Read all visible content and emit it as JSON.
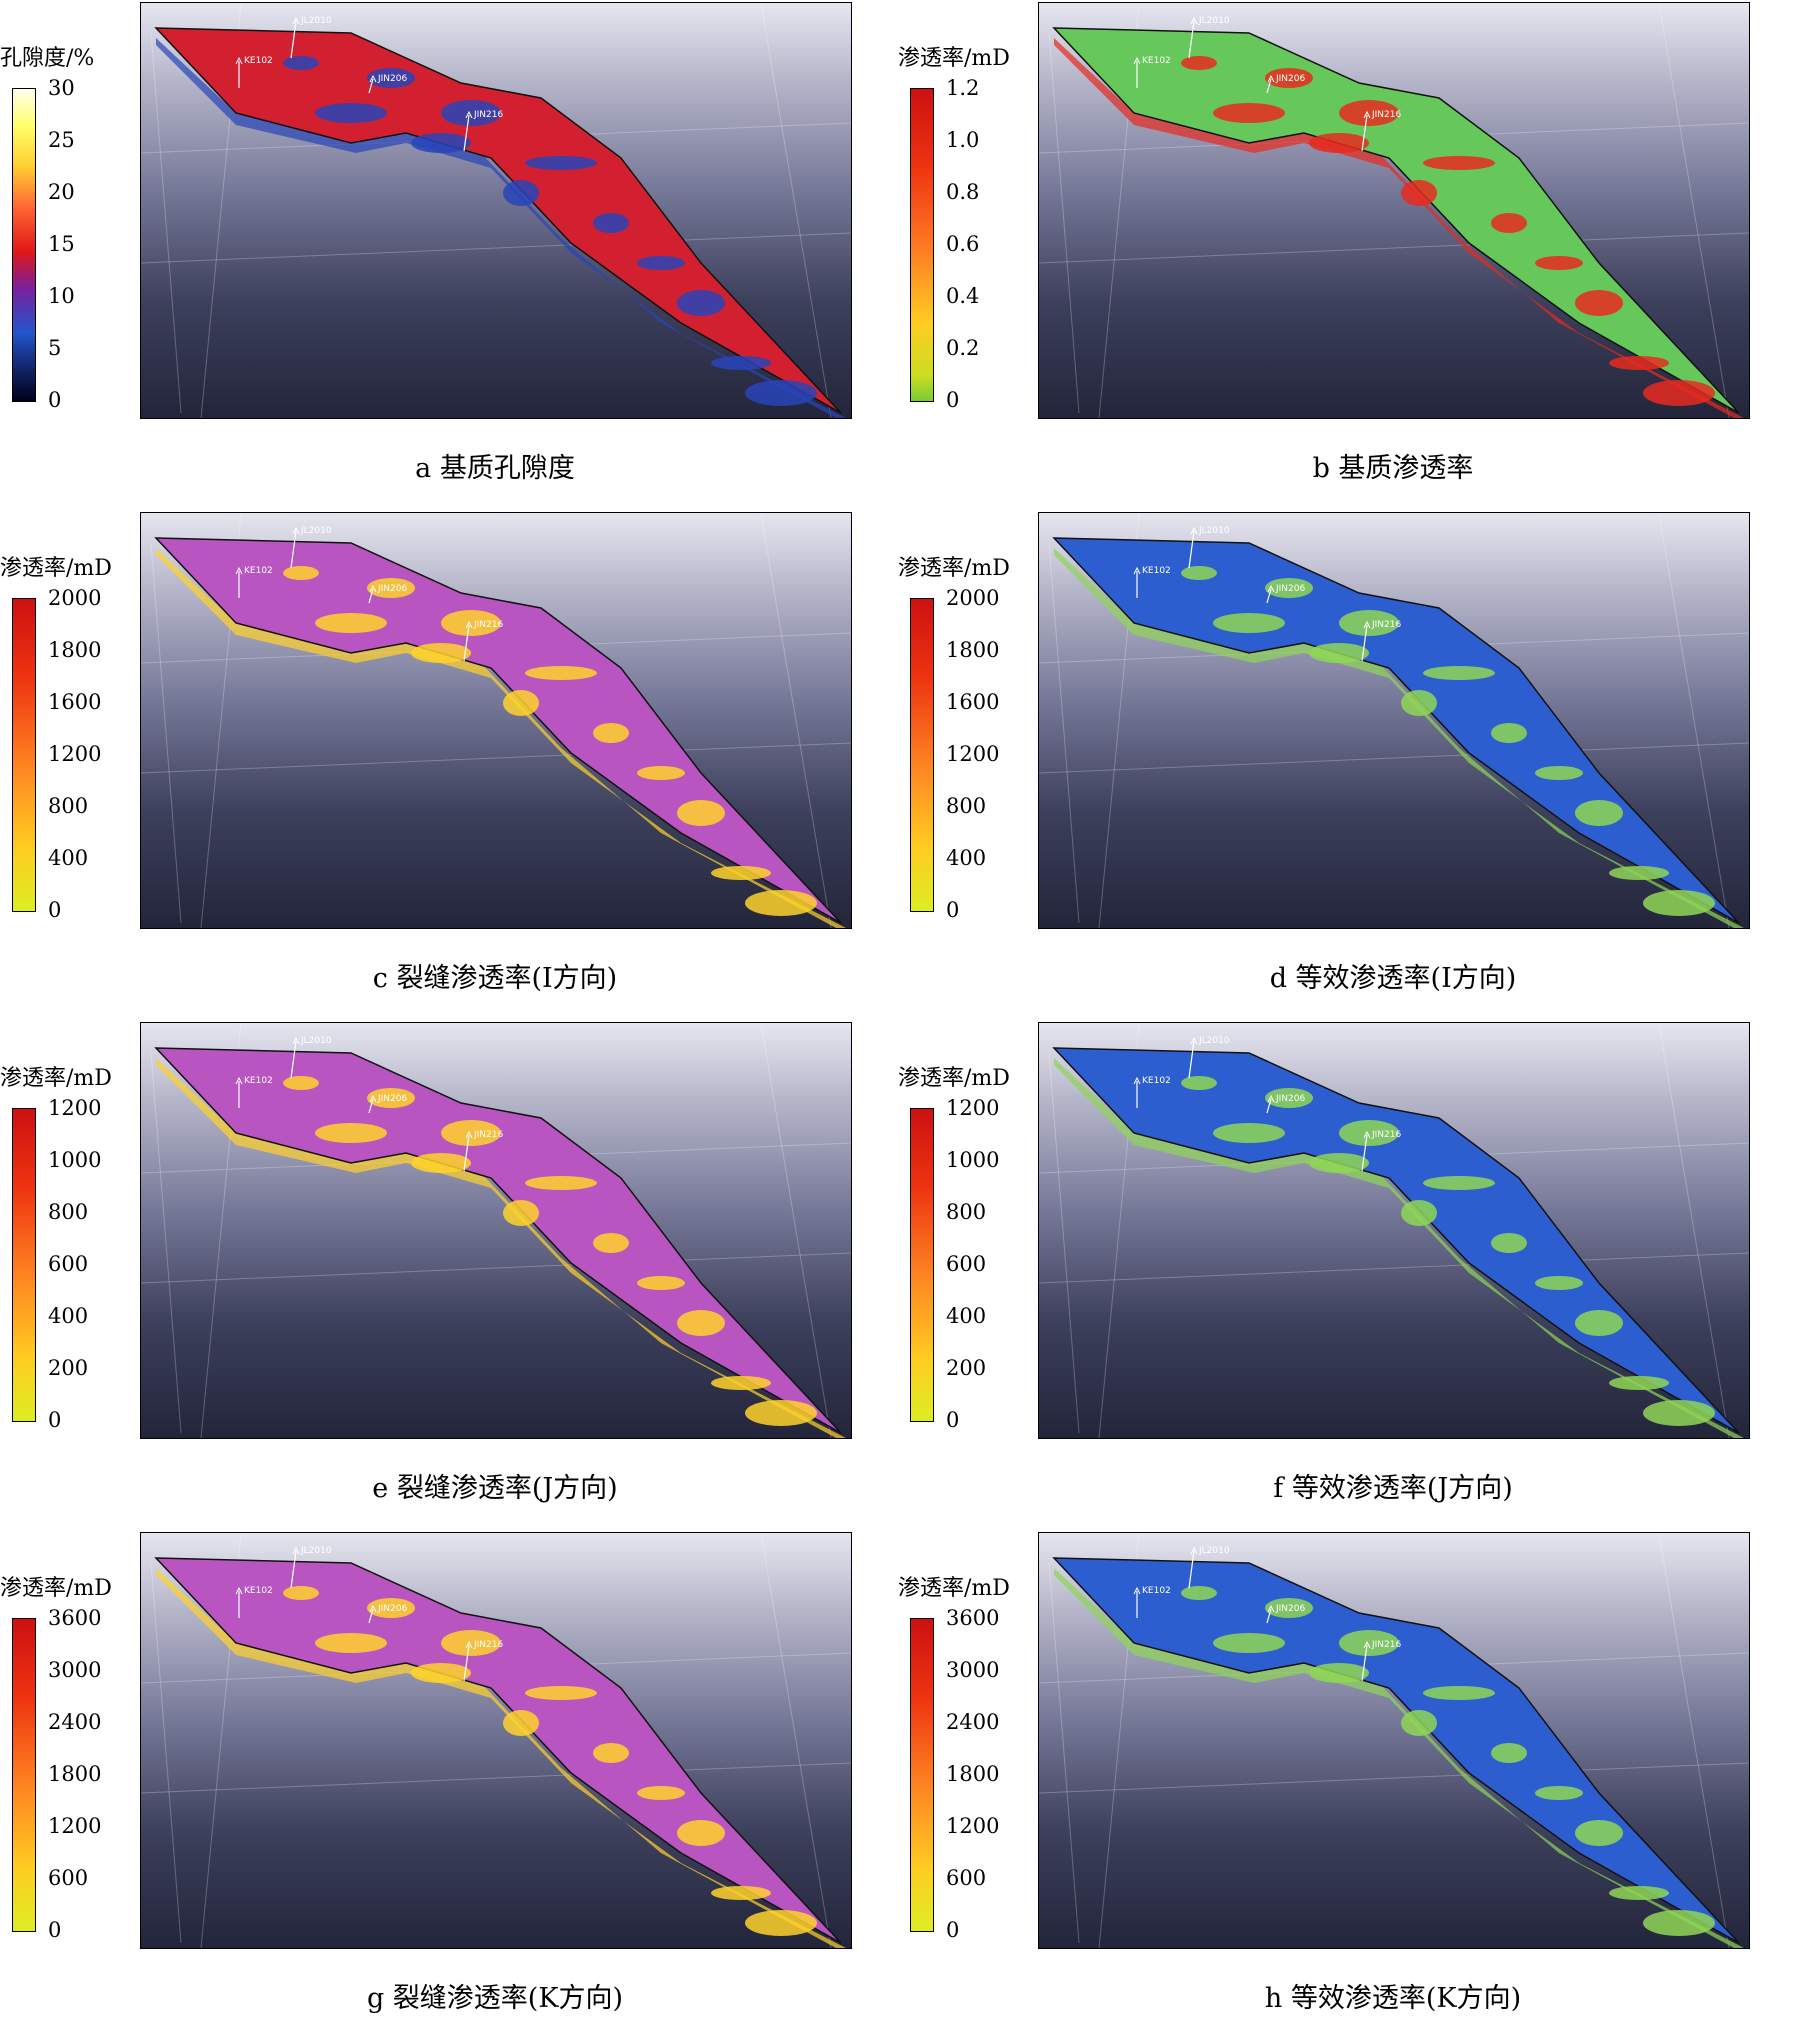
{
  "panels": [
    {
      "id": "a",
      "legend_title": "孔隙度/%",
      "ticks": [
        "30",
        "25",
        "20",
        "15",
        "10",
        "5",
        "0"
      ],
      "caption": "a  基质孔隙度",
      "colormap": "fire",
      "base_color": "#d22030",
      "accent": "#2844b8"
    },
    {
      "id": "b",
      "legend_title": "渗透率/mD",
      "ticks": [
        "1.2",
        "1.0",
        "0.8",
        "0.6",
        "0.4",
        "0.2",
        "0"
      ],
      "caption": "b  基质渗透率",
      "colormap": "perm",
      "base_color": "#66c85a",
      "accent": "#e82a1e"
    },
    {
      "id": "c",
      "legend_title": "渗透率/mD",
      "ticks": [
        "2000",
        "1800",
        "1600",
        "1200",
        "800",
        "400",
        "0"
      ],
      "caption": "c  裂缝渗透率(I方向)",
      "colormap": "fracture",
      "base_color": "#b855c0",
      "accent": "#ffd22a"
    },
    {
      "id": "d",
      "legend_title": "渗透率/mD",
      "ticks": [
        "2000",
        "1800",
        "1600",
        "1200",
        "800",
        "400",
        "0"
      ],
      "caption": "d  等效渗透率(I方向)",
      "colormap": "fracture",
      "base_color": "#2d5ed0",
      "accent": "#8fd656"
    },
    {
      "id": "e",
      "legend_title": "渗透率/mD",
      "ticks": [
        "1200",
        "1000",
        "800",
        "600",
        "400",
        "200",
        "0"
      ],
      "caption": "e  裂缝渗透率(J方向)",
      "colormap": "fracture",
      "base_color": "#b855c0",
      "accent": "#ffd22a"
    },
    {
      "id": "f",
      "legend_title": "渗透率/mD",
      "ticks": [
        "1200",
        "1000",
        "800",
        "600",
        "400",
        "200",
        "0"
      ],
      "caption": "f  等效渗透率(J方向)",
      "colormap": "fracture",
      "base_color": "#2d5ed0",
      "accent": "#8fd656"
    },
    {
      "id": "g",
      "legend_title": "渗透率/mD",
      "ticks": [
        "3600",
        "3000",
        "2400",
        "1800",
        "1200",
        "600",
        "0"
      ],
      "caption": "g  裂缝渗透率(K方向)",
      "colormap": "fracture",
      "base_color": "#b855c0",
      "accent": "#ffd22a"
    },
    {
      "id": "h",
      "legend_title": "渗透率/mD",
      "ticks": [
        "3600",
        "3000",
        "2400",
        "1800",
        "1200",
        "600",
        "0"
      ],
      "caption": "h  等效渗透率(K方向)",
      "colormap": "fracture",
      "base_color": "#2d5ed0",
      "accent": "#8fd656"
    }
  ],
  "wells": [
    "JL2010",
    "KE102",
    "JIN206",
    "JIN216"
  ]
}
